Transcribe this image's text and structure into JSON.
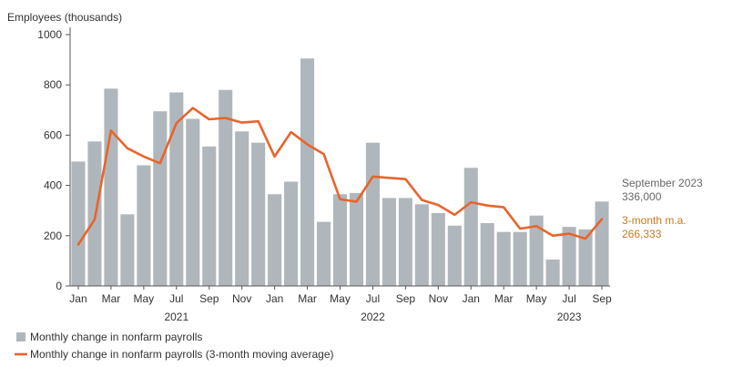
{
  "chart_data": {
    "type": "bar",
    "ylabel": "Employees (thousands)",
    "ylim": [
      0,
      1000
    ],
    "yticks": [
      0,
      200,
      400,
      600,
      800,
      1000
    ],
    "grid": false,
    "legend_position": "bottom-left",
    "categories": [
      "Jan 2021",
      "Feb 2021",
      "Mar 2021",
      "Apr 2021",
      "May 2021",
      "Jun 2021",
      "Jul 2021",
      "Aug 2021",
      "Sep 2021",
      "Oct 2021",
      "Nov 2021",
      "Dec 2021",
      "Jan 2022",
      "Feb 2022",
      "Mar 2022",
      "Apr 2022",
      "May 2022",
      "Jun 2022",
      "Jul 2022",
      "Aug 2022",
      "Sep 2022",
      "Oct 2022",
      "Nov 2022",
      "Dec 2022",
      "Jan 2023",
      "Feb 2023",
      "Mar 2023",
      "Apr 2023",
      "May 2023",
      "Jun 2023",
      "Jul 2023",
      "Aug 2023",
      "Sep 2023"
    ],
    "x_tick_labels": [
      {
        "index": 0,
        "label": "Jan"
      },
      {
        "index": 2,
        "label": "Mar"
      },
      {
        "index": 4,
        "label": "May"
      },
      {
        "index": 6,
        "label": "Jul"
      },
      {
        "index": 8,
        "label": "Sep"
      },
      {
        "index": 10,
        "label": "Nov"
      },
      {
        "index": 12,
        "label": "Jan"
      },
      {
        "index": 14,
        "label": "Mar"
      },
      {
        "index": 16,
        "label": "May"
      },
      {
        "index": 18,
        "label": "Jul"
      },
      {
        "index": 20,
        "label": "Sep"
      },
      {
        "index": 22,
        "label": "Nov"
      },
      {
        "index": 24,
        "label": "Jan"
      },
      {
        "index": 26,
        "label": "Mar"
      },
      {
        "index": 28,
        "label": "May"
      },
      {
        "index": 30,
        "label": "Jul"
      },
      {
        "index": 32,
        "label": "Sep"
      }
    ],
    "year_labels": [
      {
        "index": 6,
        "label": "2021"
      },
      {
        "index": 18,
        "label": "2022"
      },
      {
        "index": 30,
        "label": "2023"
      }
    ],
    "series": [
      {
        "name": "Monthly change in nonfarm payrolls",
        "type": "bar",
        "color": "#b0b7bc",
        "values": [
          495,
          575,
          785,
          285,
          480,
          695,
          770,
          665,
          555,
          780,
          615,
          570,
          365,
          415,
          905,
          255,
          365,
          370,
          570,
          350,
          350,
          325,
          290,
          240,
          470,
          250,
          215,
          215,
          280,
          105,
          235,
          225,
          336
        ]
      },
      {
        "name": "Monthly change in nonfarm payrolls (3-month moving average)",
        "type": "line",
        "color": "#e8642c",
        "values": [
          165,
          265,
          618,
          548,
          515,
          488,
          648,
          708,
          663,
          668,
          650,
          655,
          515,
          612,
          563,
          525,
          345,
          335,
          435,
          430,
          425,
          342,
          322,
          283,
          333,
          320,
          313,
          228,
          238,
          200,
          208,
          188,
          266
        ]
      }
    ],
    "annotations": [
      {
        "lines": [
          "September 2023",
          "336,000"
        ],
        "color": "#666666"
      },
      {
        "lines": [
          "3-month m.a.",
          "266,333"
        ],
        "color": "#c87a1e"
      }
    ]
  }
}
